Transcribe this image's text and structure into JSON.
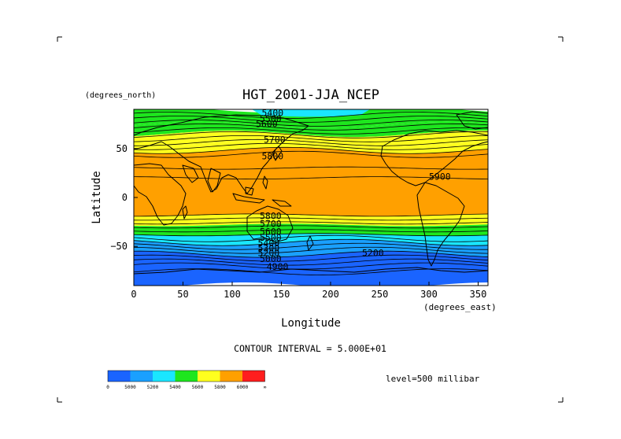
{
  "chart_data": {
    "type": "heatmap",
    "title": "HGT_2001-JJA_NCEP",
    "xlabel": "Longitude",
    "ylabel": "Latitude",
    "x_unit": "(degrees_east)",
    "y_unit": "(degrees_north)",
    "xlim": [
      0,
      360
    ],
    "ylim": [
      -90,
      90
    ],
    "x_ticks": [
      "0",
      "50",
      "100",
      "150",
      "200",
      "250",
      "300",
      "350"
    ],
    "y_ticks": [
      "50",
      "0",
      "−50"
    ],
    "contour_interval_text": "CONTOUR INTERVAL = 5.000E+01",
    "level_text": "level=500 millibar",
    "contour_labels": [
      "5400",
      "5500",
      "5600",
      "5700",
      "5800",
      "5900",
      "5800",
      "5700",
      "5600",
      "5500",
      "5400",
      "5300",
      "5200",
      "5000",
      "5200",
      "4900"
    ],
    "colorbar": {
      "colors": [
        "#1a64ff",
        "#1aa0ff",
        "#1ae6ff",
        "#1ee61e",
        "#ffff1e",
        "#ffa000",
        "#ff1e1e"
      ],
      "tick_labels": [
        "0",
        "5000",
        "5200",
        "5400",
        "5600",
        "5800",
        "6000",
        "∞"
      ]
    },
    "band_colors": {
      "blue": "#1a64ff",
      "sky": "#1aa0ff",
      "cyan": "#1ae6ff",
      "green": "#1ee61e",
      "yellow": "#ffff1e",
      "orange": "#ffa000"
    }
  }
}
